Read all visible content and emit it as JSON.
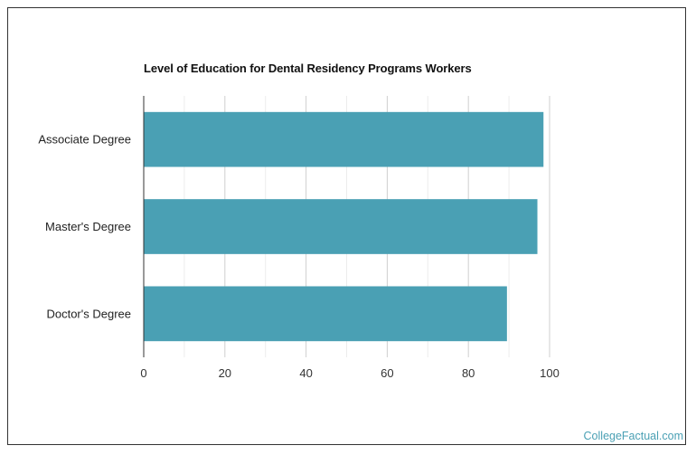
{
  "chart_data": {
    "type": "bar",
    "orientation": "horizontal",
    "title": "Level of Education for Dental Residency Programs Workers",
    "categories": [
      "Associate Degree",
      "Master's Degree",
      "Doctor's Degree"
    ],
    "values": [
      98.5,
      97,
      89.5
    ],
    "xticks": [
      "0",
      "20",
      "40",
      "60",
      "80",
      "100"
    ],
    "xlim": [
      0,
      100
    ],
    "bar_color": "#4aa0b4",
    "grid": true
  },
  "watermark": "CollegeFactual.com"
}
